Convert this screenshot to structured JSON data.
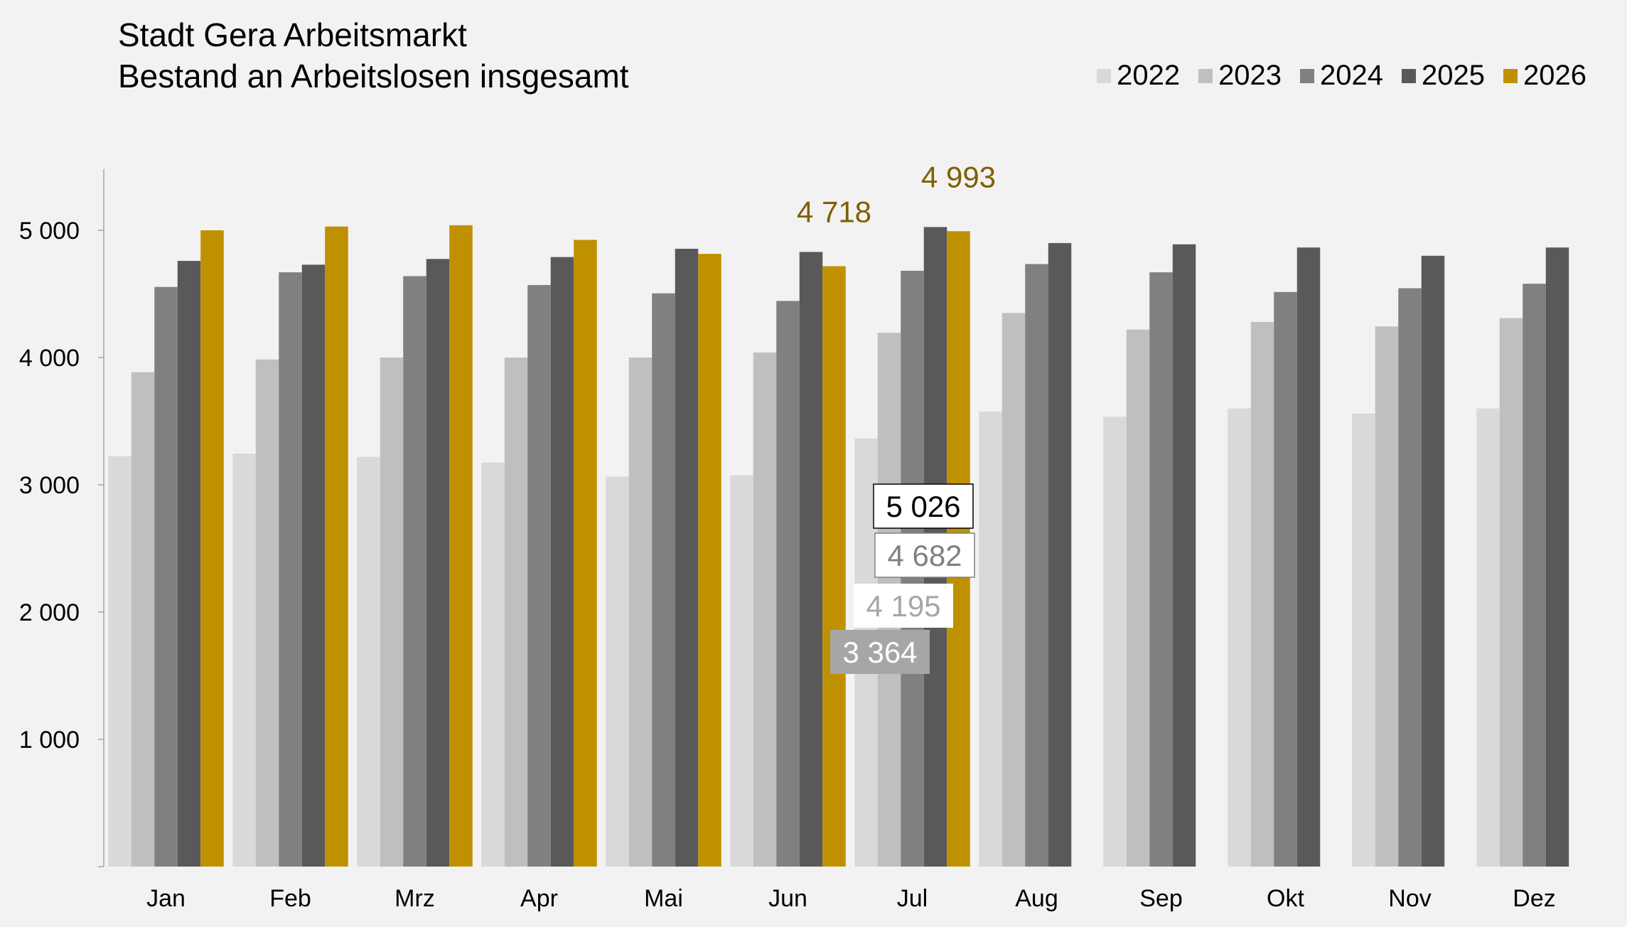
{
  "chart_data": {
    "type": "bar",
    "title": "Stadt Gera Arbeitsmarkt",
    "subtitle": "Bestand an Arbeitslosen insgesamt",
    "legend_position": "top-right",
    "categories": [
      "Jan",
      "Feb",
      "Mrz",
      "Apr",
      "Mai",
      "Jun",
      "Jul",
      "Aug",
      "Sep",
      "Okt",
      "Nov",
      "Dez"
    ],
    "ylim": [
      0,
      5440
    ],
    "yticks": [
      1000,
      2000,
      3000,
      4000,
      5000
    ],
    "ytick_labels": [
      "1 000",
      "2 000",
      "3 000",
      "4 000",
      "5 000"
    ],
    "grid": false,
    "series": [
      {
        "name": "2022",
        "color": "#d9d9d9",
        "values": [
          3225,
          3245,
          3220,
          3175,
          3065,
          3075,
          3364,
          3575,
          3535,
          3600,
          3560,
          3600
        ]
      },
      {
        "name": "2023",
        "color": "#bfbfbf",
        "values": [
          3885,
          3985,
          4000,
          4000,
          4000,
          4040,
          4195,
          4350,
          4220,
          4280,
          4245,
          4310
        ]
      },
      {
        "name": "2024",
        "color": "#808080",
        "values": [
          4555,
          4670,
          4640,
          4570,
          4505,
          4445,
          4682,
          4735,
          4670,
          4515,
          4545,
          4580
        ]
      },
      {
        "name": "2025",
        "color": "#595959",
        "values": [
          4760,
          4730,
          4775,
          4790,
          4855,
          4830,
          5026,
          4900,
          4890,
          4865,
          4800,
          4865
        ]
      },
      {
        "name": "2026",
        "color": "#bf9000",
        "values": [
          5000,
          5030,
          5040,
          4925,
          4815,
          4718,
          4993,
          null,
          null,
          null,
          null,
          null
        ]
      }
    ],
    "annotations": [
      {
        "text": "4 718",
        "series": "2026",
        "category": "Jun",
        "color": "#7f6000"
      },
      {
        "text": "4 993",
        "series": "2026",
        "category": "Jul",
        "color": "#7f6000"
      },
      {
        "text": "5 026",
        "series": "2025",
        "category": "Jul",
        "color": "#000000",
        "box": "white-bordered"
      },
      {
        "text": "4 682",
        "series": "2024",
        "category": "Jul",
        "color": "#808080",
        "box": "white-bordered"
      },
      {
        "text": "4 195",
        "series": "2023",
        "category": "Jul",
        "color": "#a6a6a6",
        "box": "white"
      },
      {
        "text": "3 364",
        "series": "2022",
        "category": "Jul",
        "color": "#ffffff",
        "box": "grey"
      }
    ]
  }
}
